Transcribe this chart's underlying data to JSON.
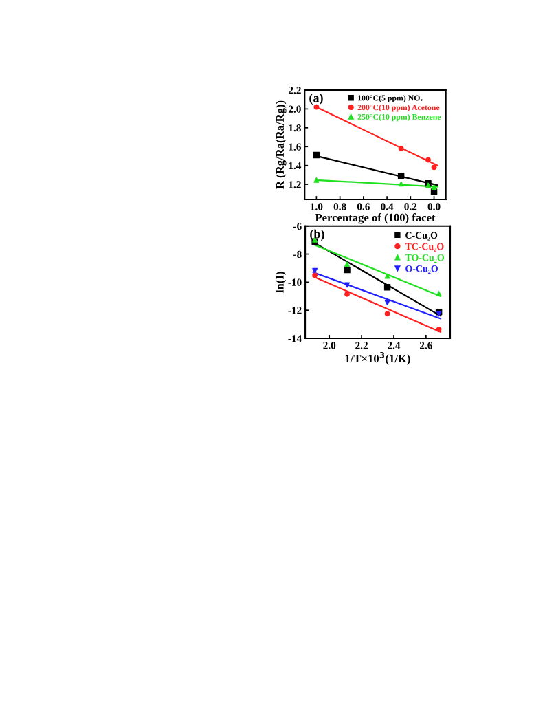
{
  "chart_data": [
    {
      "type": "scatter",
      "xlabel": "Percentage of (100) facet",
      "ylabel": "R (Rg/Ra(Ra/Rg))",
      "annotations": [
        "(a)"
      ],
      "xlim": [
        1.1,
        -0.1
      ],
      "xticks": [
        {
          "value": 1.0,
          "label": "1.0"
        },
        0.8,
        0.6,
        0.4,
        0.2,
        {
          "value": 0.0,
          "label": "0.0"
        }
      ],
      "ylim": [
        1.04,
        2.2
      ],
      "yticks": [
        1.2,
        1.4,
        1.6,
        1.8,
        {
          "value": 2.0,
          "label": "2.0"
        },
        2.2
      ],
      "grid": false,
      "legend": "top right",
      "series": [
        {
          "name": "100°C(5 ppm) NO₂",
          "color": "#000000",
          "marker": "square",
          "x": [
            1.0,
            0.28,
            0.05,
            0.0
          ],
          "values": [
            1.51,
            1.29,
            1.21,
            1.12
          ]
        },
        {
          "name": "200°C(10 ppm) Acetone",
          "color": "#ff2020",
          "marker": "circle",
          "x": [
            1.0,
            0.28,
            0.05,
            0.0
          ],
          "values": [
            2.02,
            1.58,
            1.46,
            1.38
          ]
        },
        {
          "name": "250°C(10 ppm) Benzene",
          "color": "#20e020",
          "marker": "triangle",
          "x": [
            1.0,
            0.28,
            0.05,
            0.0
          ],
          "values": [
            1.245,
            1.205,
            1.19,
            1.17
          ]
        },
        {
          "type": "line",
          "color": "#000000",
          "x": [
            1.0,
            -0.03
          ],
          "values": [
            1.5,
            1.19
          ]
        },
        {
          "type": "line",
          "color": "#ff2020",
          "x": [
            1.0,
            -0.03
          ],
          "values": [
            2.02,
            1.4
          ]
        },
        {
          "type": "line",
          "color": "#20e020",
          "x": [
            1.0,
            -0.03
          ],
          "values": [
            1.245,
            1.175
          ]
        }
      ]
    },
    {
      "type": "scatter",
      "xlabel": "1/T×10$^{3}$(1/K)",
      "ylabel": "ln(I)",
      "annotations": [
        "(b)"
      ],
      "xlim": [
        1.85,
        2.75
      ],
      "xticks": [
        {
          "value": 2.0,
          "label": "2.0"
        },
        2.2,
        2.4,
        2.6
      ],
      "ylim": [
        -14,
        -6
      ],
      "yticks": [
        -14,
        -12,
        -10,
        -8,
        -6
      ],
      "grid": false,
      "legend": "top right",
      "series": [
        {
          "name": "C-Cu₂O",
          "color": "#000000",
          "marker": "square",
          "x": [
            1.91,
            2.11,
            2.36,
            2.68
          ],
          "values": [
            -7.1,
            -9.13,
            -10.36,
            -12.13
          ]
        },
        {
          "name": "TC-Cu₂O",
          "color": "#ff2020",
          "marker": "circle",
          "x": [
            1.91,
            2.11,
            2.36,
            2.68
          ],
          "values": [
            -9.49,
            -10.85,
            -12.25,
            -13.37
          ]
        },
        {
          "name": "TO-Cu₂O",
          "color": "#20e020",
          "marker": "triangle",
          "x": [
            1.91,
            2.11,
            2.36,
            2.68
          ],
          "values": [
            -6.98,
            -8.72,
            -9.57,
            -10.82
          ]
        },
        {
          "name": "O-Cu₂O",
          "color": "#2020ff",
          "marker": "triangle_down",
          "x": [
            1.91,
            2.11,
            2.36,
            2.68
          ],
          "values": [
            -9.18,
            -10.2,
            -11.46,
            -12.26
          ]
        },
        {
          "type": "line",
          "color": "#000000",
          "x": [
            1.9,
            2.69
          ],
          "values": [
            -7.15,
            -12.4
          ]
        },
        {
          "type": "line",
          "color": "#ff2020",
          "x": [
            1.9,
            2.69
          ],
          "values": [
            -9.6,
            -13.55
          ]
        },
        {
          "type": "line",
          "color": "#20e020",
          "x": [
            1.9,
            2.69
          ],
          "values": [
            -7.3,
            -11.0
          ]
        },
        {
          "type": "line",
          "color": "#2020ff",
          "x": [
            1.9,
            2.69
          ],
          "values": [
            -9.3,
            -12.6
          ]
        }
      ]
    }
  ]
}
